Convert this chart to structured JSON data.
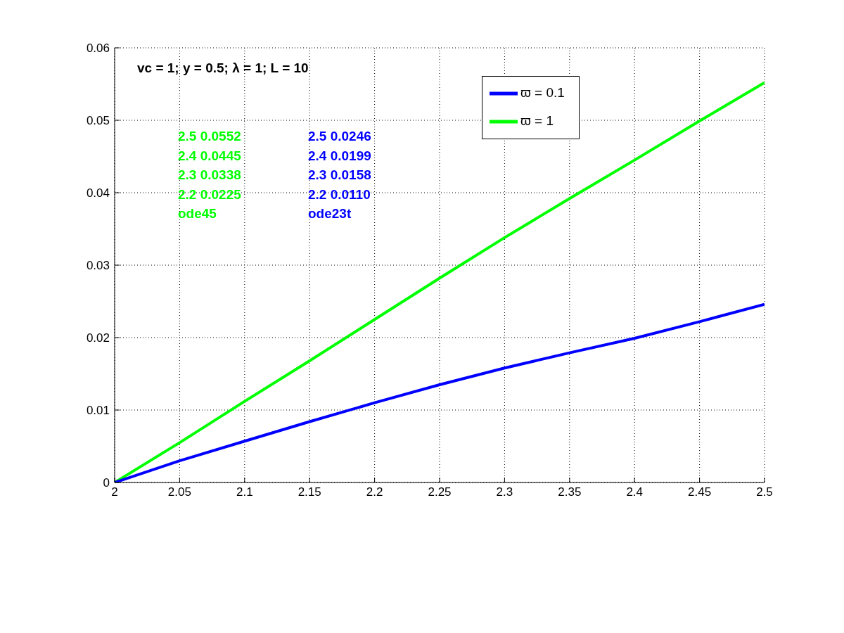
{
  "chart_data": {
    "type": "line",
    "x": [
      2,
      2.05,
      2.1,
      2.15,
      2.2,
      2.25,
      2.3,
      2.35,
      2.4,
      2.45,
      2.5
    ],
    "series": [
      {
        "name": "ϖ = 1",
        "color": "#00ff00",
        "values": [
          0,
          0.0055,
          0.0112,
          0.0168,
          0.0225,
          0.0282,
          0.0338,
          0.0392,
          0.0445,
          0.0499,
          0.0552
        ]
      },
      {
        "name": "ϖ = 0.1",
        "color": "#0000ff",
        "values": [
          0,
          0.003,
          0.0057,
          0.0084,
          0.011,
          0.0135,
          0.0158,
          0.0179,
          0.0199,
          0.0222,
          0.0246
        ]
      }
    ],
    "xlim": [
      2,
      2.5
    ],
    "xticks": [
      2,
      2.05,
      2.1,
      2.15,
      2.2,
      2.25,
      2.3,
      2.35,
      2.4,
      2.45,
      2.5
    ],
    "ylim": [
      0,
      0.06
    ],
    "yticks": [
      0,
      0.01,
      0.02,
      0.03,
      0.04,
      0.05,
      0.06
    ],
    "grid": true,
    "legend": "top right",
    "marker": "none",
    "line_style": "solid",
    "annotations": [
      "vc = 1; y = 0.5; λ = 1; L = 10",
      "2.5 0.0552",
      "2.4 0.0445",
      "2.3 0.0338",
      "2.2 0.0225",
      "ode45",
      "2.5 0.0246",
      "2.4 0.0199",
      "2.3 0.0158",
      "2.2 0.0110",
      "ode23t"
    ]
  }
}
